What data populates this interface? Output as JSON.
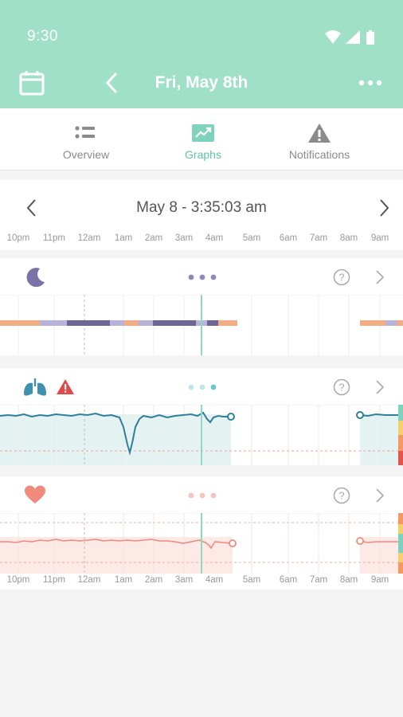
{
  "status_bar": {
    "time": "9:30",
    "icons": [
      "wifi-icon",
      "signal-icon",
      "battery-icon"
    ]
  },
  "header": {
    "title": "Fri, May 8th",
    "icons": [
      "calendar-icon",
      "back-arrow-icon",
      "more-icon"
    ],
    "background_color": "#9fe0c6"
  },
  "tabs": [
    {
      "label": "Overview",
      "icon": "list-icon",
      "active": false
    },
    {
      "label": "Graphs",
      "icon": "graph-icon",
      "active": true
    },
    {
      "label": "Notifications",
      "icon": "warning-icon",
      "active": false
    }
  ],
  "date_nav": {
    "label": "May 8 - 3:35:03 am"
  },
  "time_axis": {
    "labels": [
      "10pm",
      "11pm",
      "12am",
      "1am",
      "2am",
      "3am",
      "4am",
      "5am",
      "6am",
      "7am",
      "8am",
      "9am"
    ]
  },
  "sleep_chart": {
    "icon": "moon-icon",
    "icon_color": "#7a73a8",
    "dots_color": "#8f88c0",
    "stage_colors": {
      "light": "#f2ad84",
      "deep": "#b7b3d9",
      "rem": "#6e6795"
    }
  },
  "oxygen_chart": {
    "icon": "lungs-icon",
    "alert_icon": "warning-icon",
    "line_color": "#2f7f9c",
    "fill_color": "#e4f3f1"
  },
  "heart_chart": {
    "icon": "heart-icon",
    "line_color": "#ef8a7c",
    "fill_color": "#fde9e6"
  }
}
